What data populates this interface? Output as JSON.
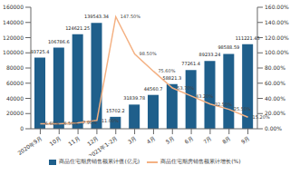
{
  "chart_data": {
    "type": "bar",
    "categories": [
      "2020年9月",
      "10月",
      "11月",
      "12月",
      "2021年1-2月",
      "3月",
      "4月",
      "5月",
      "6月",
      "7月",
      "8月",
      "9月"
    ],
    "series": [
      {
        "name": "商品住宅期房销售额累计值(亿元)",
        "type": "bar",
        "color": "#1f5f8b",
        "values": [
          93725.4,
          106786.6,
          124621.25,
          139543.34,
          15702.2,
          31839.78,
          44560.7,
          58821.3,
          77261.4,
          89233.24,
          98588.59,
          111221.45
        ]
      },
      {
        "name": "商品住宅期房销售额累计增长(%)",
        "type": "line",
        "axis": "y2",
        "color": "#f4b183",
        "values": [
          6.6,
          6.5,
          7.9,
          11.0,
          147.5,
          98.5,
          75.6,
          53.7,
          43.2,
          32.5,
          25.5,
          15.2
        ],
        "value_labels": [
          "6.60%",
          "6.50%",
          "7.90%",
          "11.00%",
          "147.50%",
          "98.50%",
          "75.60%",
          "53.70%",
          "43.20%",
          "32.50%",
          "25.50%",
          "15.20%"
        ]
      }
    ],
    "ylim": [
      0,
      160000
    ],
    "yticks": [
      0,
      20000,
      40000,
      60000,
      80000,
      100000,
      120000,
      140000,
      160000
    ],
    "y2lim": [
      0,
      160
    ],
    "y2ticks": [
      {
        "value": 0,
        "label": "0.00%"
      },
      {
        "value": 20,
        "label": "20.00%"
      },
      {
        "value": 40,
        "label": "40.00%"
      },
      {
        "value": 60,
        "label": "60.00%"
      },
      {
        "value": 80,
        "label": "80.00%"
      },
      {
        "value": 100,
        "label": "100.00%"
      },
      {
        "value": 120,
        "label": "120.00%"
      },
      {
        "value": 140,
        "label": "140.00%"
      },
      {
        "value": 160,
        "label": "160.00%"
      }
    ],
    "grid": false,
    "data_labels": true
  }
}
